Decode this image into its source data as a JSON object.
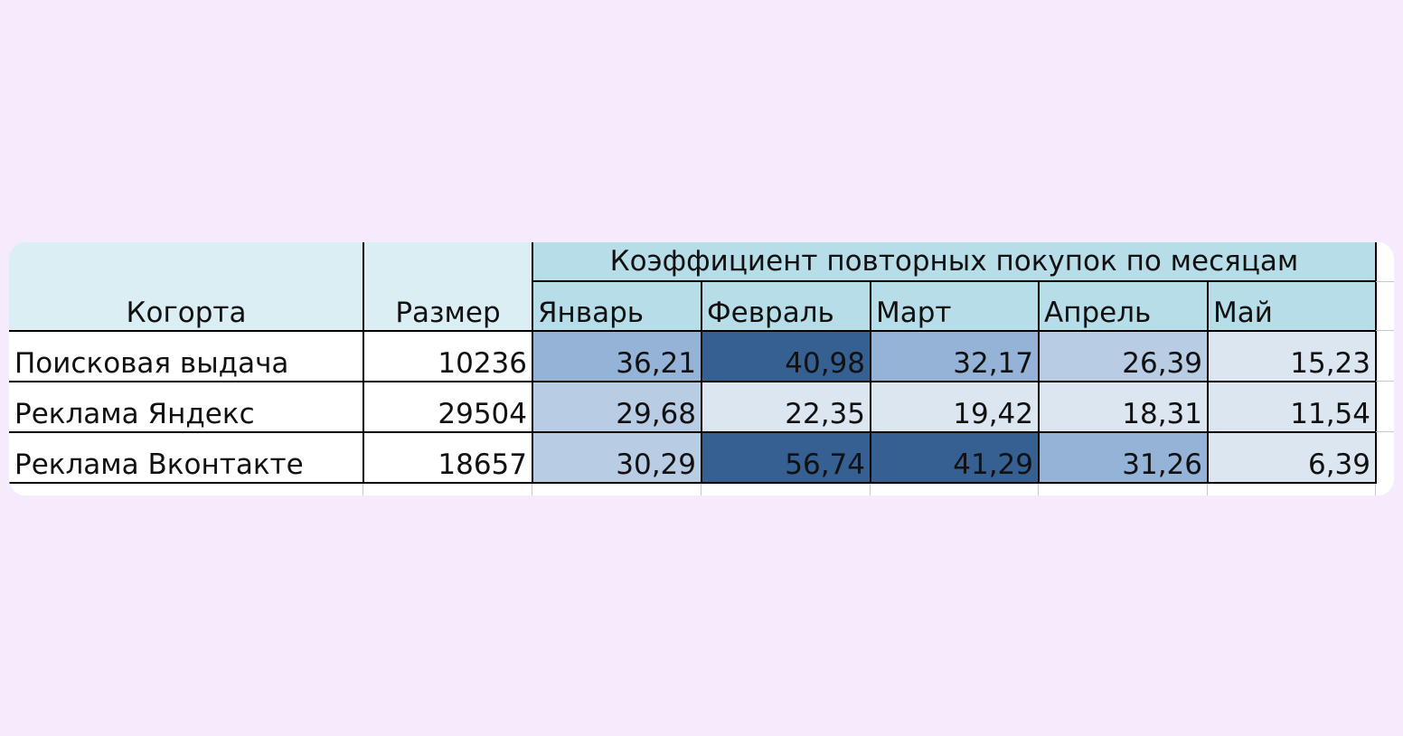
{
  "chart_data": {
    "type": "table",
    "title": "Коэффициент повторных покупок по месяцам",
    "columns": {
      "cohort": "Когорта",
      "size": "Размер",
      "months": [
        "Январь",
        "Февраль",
        "Март",
        "Апрель",
        "Май"
      ]
    },
    "rows": [
      {
        "cohort": "Поисковая выдача",
        "size": "10236",
        "values": [
          "36,21",
          "40,98",
          "32,17",
          "26,39",
          "15,23"
        ],
        "fills": [
          "#95b3d7",
          "#366092",
          "#95b3d7",
          "#b8cce4",
          "#dce6f1"
        ]
      },
      {
        "cohort": "Реклама Яндекс",
        "size": "29504",
        "values": [
          "29,68",
          "22,35",
          "19,42",
          "18,31",
          "11,54"
        ],
        "fills": [
          "#b8cce4",
          "#dce6f1",
          "#dce6f1",
          "#dce6f1",
          "#dce6f1"
        ]
      },
      {
        "cohort": "Реклама Вконтакте",
        "size": "18657",
        "values": [
          "30,29",
          "56,74",
          "41,29",
          "31,26",
          "6,39"
        ],
        "fills": [
          "#b8cce4",
          "#366092",
          "#366092",
          "#95b3d7",
          "#dce6f1"
        ]
      }
    ],
    "colors": {
      "header_light": "#daeef3",
      "header_months": "#b7dee8",
      "background": "#f5ebfd"
    }
  }
}
